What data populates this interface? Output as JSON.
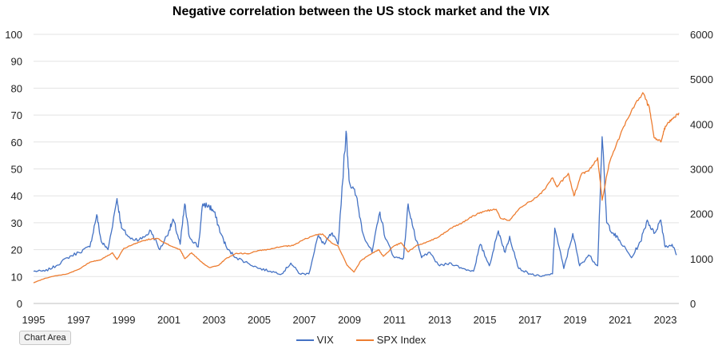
{
  "chart_data": {
    "type": "line",
    "title": "Negative correlation between the US stock market and the VIX",
    "xlabel": "",
    "ylabel": "",
    "x_range": [
      1995,
      2023.6
    ],
    "x_ticks": [
      "1995",
      "1997",
      "1999",
      "2001",
      "2003",
      "2005",
      "2007",
      "2009",
      "2011",
      "2013",
      "2015",
      "2017",
      "2019",
      "2021",
      "2023"
    ],
    "y_left_range": [
      0,
      100
    ],
    "y_left_ticks": [
      "0",
      "10",
      "20",
      "30",
      "40",
      "50",
      "60",
      "70",
      "80",
      "90",
      "100"
    ],
    "y_right_range": [
      0,
      6000
    ],
    "y_right_ticks": [
      "0",
      "1000",
      "2000",
      "3000",
      "4000",
      "5000",
      "6000"
    ],
    "grid": true,
    "legend_position": "bottom",
    "series": [
      {
        "name": "VIX",
        "axis": "left",
        "color": "#4472C4",
        "points": [
          [
            1995.0,
            12
          ],
          [
            1995.5,
            12
          ],
          [
            1996.0,
            14
          ],
          [
            1996.5,
            17
          ],
          [
            1997.0,
            19
          ],
          [
            1997.5,
            21
          ],
          [
            1997.8,
            33
          ],
          [
            1998.0,
            23
          ],
          [
            1998.3,
            20
          ],
          [
            1998.7,
            39
          ],
          [
            1998.9,
            28
          ],
          [
            1999.3,
            24
          ],
          [
            1999.8,
            24
          ],
          [
            2000.2,
            27
          ],
          [
            2000.6,
            20
          ],
          [
            2001.0,
            27
          ],
          [
            2001.2,
            31
          ],
          [
            2001.5,
            22
          ],
          [
            2001.7,
            37
          ],
          [
            2001.9,
            25
          ],
          [
            2002.3,
            21
          ],
          [
            2002.5,
            37
          ],
          [
            2002.8,
            36
          ],
          [
            2003.0,
            34
          ],
          [
            2003.3,
            26
          ],
          [
            2003.6,
            20
          ],
          [
            2004.0,
            17
          ],
          [
            2004.5,
            15
          ],
          [
            2005.0,
            13
          ],
          [
            2005.5,
            12
          ],
          [
            2006.0,
            11
          ],
          [
            2006.4,
            15
          ],
          [
            2006.8,
            11
          ],
          [
            2007.2,
            11
          ],
          [
            2007.6,
            25
          ],
          [
            2007.9,
            22
          ],
          [
            2008.2,
            26
          ],
          [
            2008.5,
            22
          ],
          [
            2008.85,
            64
          ],
          [
            2009.0,
            45
          ],
          [
            2009.3,
            40
          ],
          [
            2009.6,
            26
          ],
          [
            2010.0,
            19
          ],
          [
            2010.35,
            34
          ],
          [
            2010.6,
            24
          ],
          [
            2011.0,
            17
          ],
          [
            2011.4,
            17
          ],
          [
            2011.6,
            37
          ],
          [
            2011.9,
            25
          ],
          [
            2012.2,
            17
          ],
          [
            2012.5,
            19
          ],
          [
            2013.0,
            14
          ],
          [
            2013.5,
            15
          ],
          [
            2014.0,
            13
          ],
          [
            2014.5,
            12
          ],
          [
            2014.8,
            22
          ],
          [
            2015.2,
            14
          ],
          [
            2015.6,
            27
          ],
          [
            2015.9,
            19
          ],
          [
            2016.1,
            25
          ],
          [
            2016.5,
            13
          ],
          [
            2017.0,
            11
          ],
          [
            2017.5,
            10
          ],
          [
            2018.0,
            11
          ],
          [
            2018.1,
            28
          ],
          [
            2018.5,
            13
          ],
          [
            2018.9,
            26
          ],
          [
            2019.2,
            14
          ],
          [
            2019.6,
            18
          ],
          [
            2020.0,
            14
          ],
          [
            2020.2,
            62
          ],
          [
            2020.4,
            30
          ],
          [
            2020.7,
            26
          ],
          [
            2021.0,
            23
          ],
          [
            2021.5,
            17
          ],
          [
            2021.9,
            23
          ],
          [
            2022.2,
            31
          ],
          [
            2022.5,
            26
          ],
          [
            2022.8,
            31
          ],
          [
            2023.0,
            21
          ],
          [
            2023.3,
            22
          ],
          [
            2023.5,
            18
          ]
        ]
      },
      {
        "name": "SPX Index",
        "axis": "right",
        "color": "#ED7D31",
        "points": [
          [
            1995.0,
            460
          ],
          [
            1995.5,
            560
          ],
          [
            1996.0,
            620
          ],
          [
            1996.5,
            660
          ],
          [
            1997.0,
            760
          ],
          [
            1997.5,
            920
          ],
          [
            1998.0,
            980
          ],
          [
            1998.5,
            1130
          ],
          [
            1998.7,
            980
          ],
          [
            1999.0,
            1230
          ],
          [
            1999.5,
            1330
          ],
          [
            2000.0,
            1420
          ],
          [
            2000.5,
            1450
          ],
          [
            2001.0,
            1300
          ],
          [
            2001.5,
            1200
          ],
          [
            2001.7,
            1000
          ],
          [
            2002.0,
            1130
          ],
          [
            2002.5,
            900
          ],
          [
            2002.8,
            800
          ],
          [
            2003.2,
            850
          ],
          [
            2003.5,
            990
          ],
          [
            2004.0,
            1120
          ],
          [
            2004.5,
            1110
          ],
          [
            2005.0,
            1180
          ],
          [
            2005.5,
            1210
          ],
          [
            2006.0,
            1270
          ],
          [
            2006.5,
            1290
          ],
          [
            2007.0,
            1430
          ],
          [
            2007.5,
            1530
          ],
          [
            2007.8,
            1550
          ],
          [
            2008.2,
            1350
          ],
          [
            2008.5,
            1280
          ],
          [
            2008.9,
            850
          ],
          [
            2009.2,
            700
          ],
          [
            2009.5,
            950
          ],
          [
            2010.0,
            1120
          ],
          [
            2010.3,
            1200
          ],
          [
            2010.5,
            1050
          ],
          [
            2011.0,
            1290
          ],
          [
            2011.3,
            1350
          ],
          [
            2011.6,
            1150
          ],
          [
            2012.0,
            1300
          ],
          [
            2012.5,
            1380
          ],
          [
            2013.0,
            1500
          ],
          [
            2013.5,
            1680
          ],
          [
            2014.0,
            1800
          ],
          [
            2014.5,
            1960
          ],
          [
            2015.0,
            2060
          ],
          [
            2015.5,
            2100
          ],
          [
            2015.7,
            1900
          ],
          [
            2016.1,
            1850
          ],
          [
            2016.5,
            2100
          ],
          [
            2017.0,
            2270
          ],
          [
            2017.5,
            2450
          ],
          [
            2018.0,
            2800
          ],
          [
            2018.2,
            2600
          ],
          [
            2018.7,
            2900
          ],
          [
            2018.95,
            2400
          ],
          [
            2019.3,
            2900
          ],
          [
            2019.6,
            2950
          ],
          [
            2020.0,
            3250
          ],
          [
            2020.2,
            2300
          ],
          [
            2020.5,
            3100
          ],
          [
            2021.0,
            3750
          ],
          [
            2021.5,
            4300
          ],
          [
            2022.0,
            4700
          ],
          [
            2022.3,
            4350
          ],
          [
            2022.5,
            3700
          ],
          [
            2022.8,
            3600
          ],
          [
            2023.0,
            3950
          ],
          [
            2023.3,
            4100
          ],
          [
            2023.6,
            4250
          ]
        ]
      }
    ]
  },
  "ui": {
    "chart_area_label": "Chart Area"
  }
}
